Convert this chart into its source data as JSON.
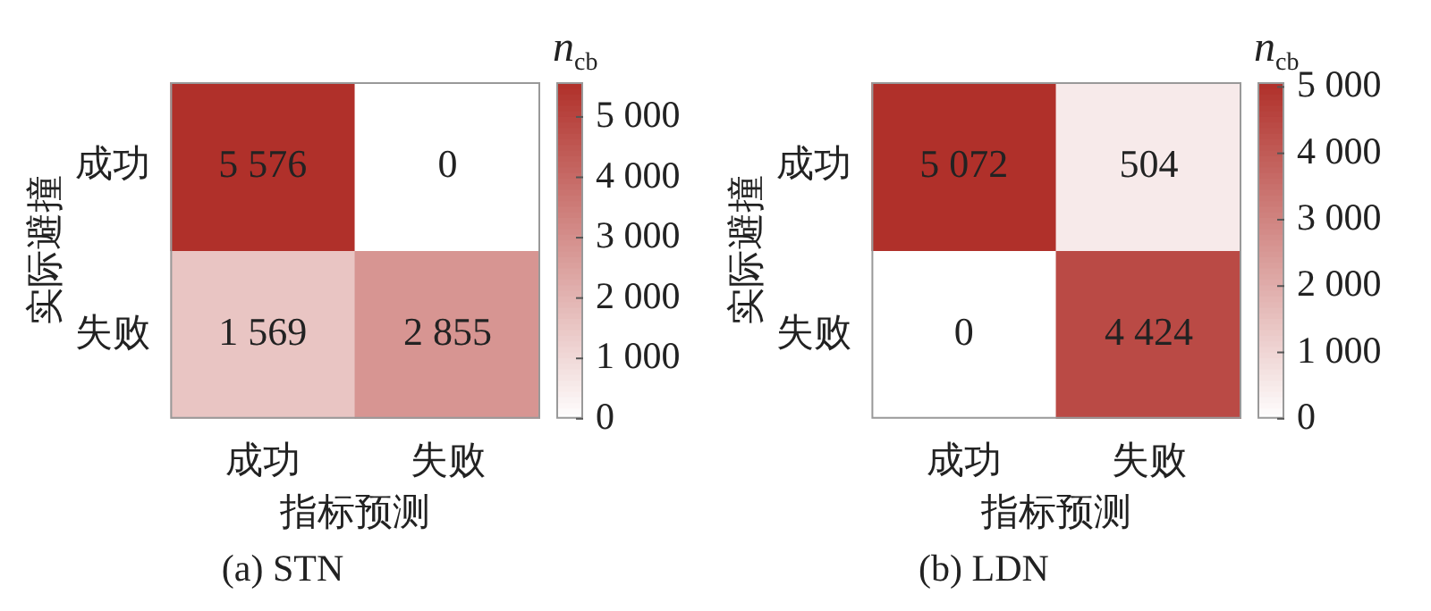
{
  "chart_data": [
    {
      "type": "heatmap",
      "title": "(a) STN",
      "xlabel": "指标预测",
      "ylabel": "实际避撞",
      "clabel": "n$_{cb}$",
      "categories": [
        "成功",
        "失败"
      ],
      "y_categories": [
        "成功",
        "失败"
      ],
      "cells": [
        [
          5576,
          0
        ],
        [
          1569,
          2855
        ]
      ],
      "cell_labels": [
        [
          "5 576",
          "0"
        ],
        [
          "1 569",
          "2 855"
        ]
      ],
      "clim": [
        0,
        5576
      ],
      "cticks": [
        0,
        {
          "value": 1000,
          "label": "1 000"
        },
        {
          "value": 2000,
          "label": "2 000"
        },
        {
          "value": 3000,
          "label": "3 000"
        },
        {
          "value": 4000,
          "label": "4 000"
        },
        {
          "value": 5000,
          "label": "5 000"
        }
      ],
      "color": "#b0302a"
    },
    {
      "type": "heatmap",
      "title": "(b) LDN",
      "xlabel": "指标预测",
      "ylabel": "实际避撞",
      "clabel": "n$_{cb}$",
      "categories": [
        "成功",
        "失败"
      ],
      "y_categories": [
        "成功",
        "失败"
      ],
      "cells": [
        [
          5072,
          504
        ],
        [
          0,
          4424
        ]
      ],
      "cell_labels": [
        [
          "5 072",
          "504"
        ],
        [
          "0",
          "4 424"
        ]
      ],
      "clim": [
        0,
        5072
      ],
      "cticks": [
        0,
        {
          "value": 1000,
          "label": "1 000"
        },
        {
          "value": 2000,
          "label": "2 000"
        },
        {
          "value": 3000,
          "label": "3 000"
        },
        {
          "value": 4000,
          "label": "4 000"
        },
        {
          "value": 5000,
          "label": "5 000"
        }
      ],
      "color": "#b0302a"
    }
  ]
}
